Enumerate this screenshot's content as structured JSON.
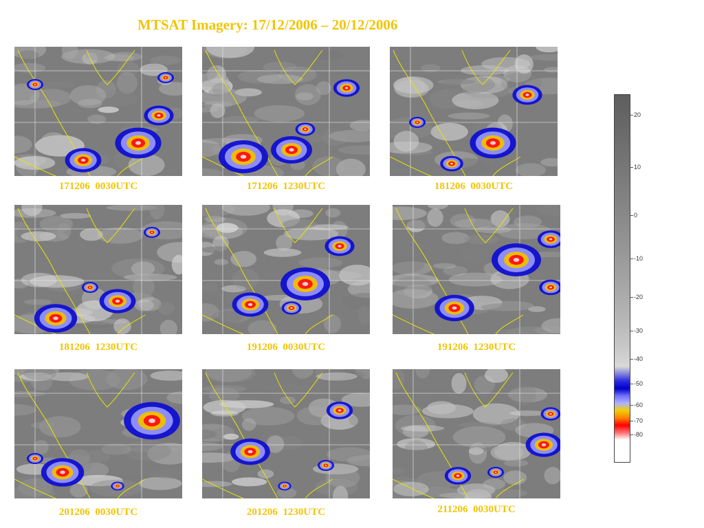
{
  "title": "MTSAT Imagery: 17/12/2006 – 20/12/2006",
  "panels": [
    {
      "caption": "171206  0030UTC"
    },
    {
      "caption": "171206  1230UTC"
    },
    {
      "caption": "181206  0030UTC"
    },
    {
      "caption": "181206  1230UTC"
    },
    {
      "caption": "191206  0030UTC"
    },
    {
      "caption": "191206  1230UTC"
    },
    {
      "caption": "201206  0030UTC"
    },
    {
      "caption": "201206  1230UTC"
    },
    {
      "caption": "211206  0030UTC"
    }
  ],
  "scale": {
    "labels": [
      "20",
      "10",
      "0",
      "-10",
      "-20",
      "-30",
      "-40",
      "-50",
      "-60",
      "-70",
      "-80"
    ]
  },
  "colors": {
    "title": "#f2c400",
    "coastline": "#e6e600",
    "background_cloud": "#7d7d7d",
    "cold_cloud_blue": "#1010d0",
    "cold_cloud_yellow": "#f0c000",
    "cold_cloud_red": "#ff1010"
  }
}
